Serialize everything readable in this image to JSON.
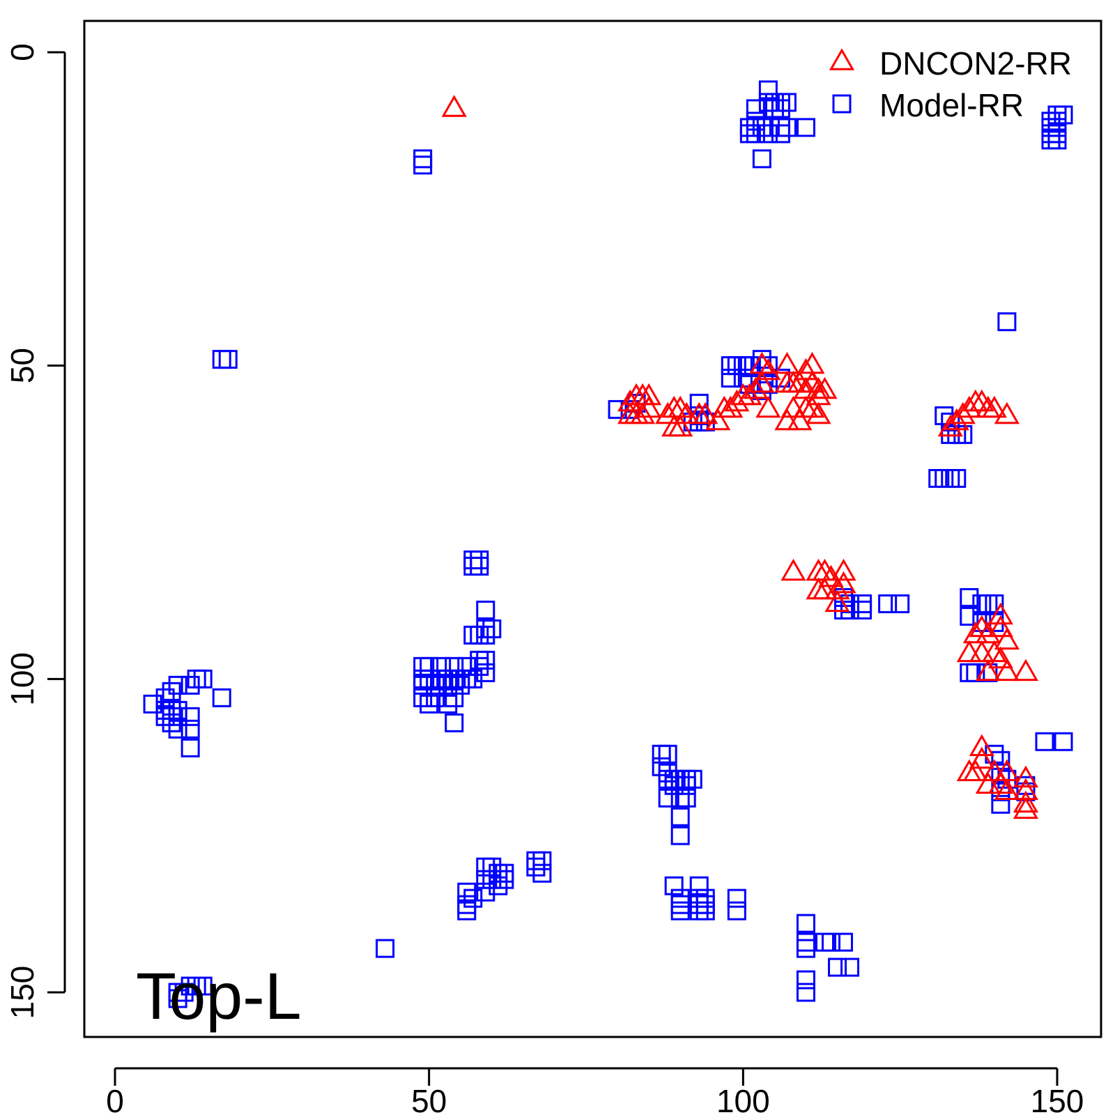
{
  "chart_data": {
    "type": "scatter",
    "title": "",
    "xlabel": "",
    "ylabel": "",
    "xlim": [
      -5,
      157
    ],
    "ylim": [
      -5,
      157
    ],
    "y_inverted": true,
    "x_ticks": [
      0,
      50,
      100,
      150
    ],
    "y_ticks": [
      0,
      50,
      100,
      150
    ],
    "x_tick_labels": [
      "0",
      "50",
      "100",
      "150"
    ],
    "y_tick_labels": [
      "0",
      "50",
      "100",
      "150"
    ],
    "annotation": "Top-L",
    "legend_position": "top-right",
    "grid": false,
    "series": [
      {
        "name": "DNCON2-RR",
        "marker": "triangle",
        "color": "#ff0000",
        "points": [
          [
            54,
            9
          ],
          [
            82,
            56
          ],
          [
            83,
            55
          ],
          [
            84,
            55
          ],
          [
            85,
            55
          ],
          [
            82,
            58
          ],
          [
            83,
            58
          ],
          [
            84,
            58
          ],
          [
            85,
            57
          ],
          [
            88,
            58
          ],
          [
            89,
            57
          ],
          [
            90,
            57
          ],
          [
            89,
            60
          ],
          [
            90,
            60
          ],
          [
            91,
            58
          ],
          [
            93,
            58
          ],
          [
            94,
            58
          ],
          [
            96,
            59
          ],
          [
            97,
            57
          ],
          [
            98,
            57
          ],
          [
            99,
            56
          ],
          [
            100,
            55
          ],
          [
            101,
            55
          ],
          [
            102,
            54
          ],
          [
            103,
            53
          ],
          [
            104,
            51
          ],
          [
            103,
            50
          ],
          [
            104,
            57
          ],
          [
            107,
            50
          ],
          [
            107,
            53
          ],
          [
            108,
            53
          ],
          [
            109,
            53
          ],
          [
            110,
            51
          ],
          [
            110,
            54
          ],
          [
            111,
            50
          ],
          [
            111,
            53
          ],
          [
            112,
            54
          ],
          [
            112,
            55
          ],
          [
            108,
            57
          ],
          [
            110,
            57
          ],
          [
            111,
            57
          ],
          [
            113,
            54
          ],
          [
            107,
            59
          ],
          [
            109,
            59
          ],
          [
            112,
            58
          ],
          [
            133,
            60
          ],
          [
            134,
            59
          ],
          [
            135,
            58
          ],
          [
            136,
            57
          ],
          [
            137,
            56
          ],
          [
            138,
            56
          ],
          [
            139,
            57
          ],
          [
            140,
            57
          ],
          [
            142,
            58
          ],
          [
            108,
            83
          ],
          [
            112,
            83
          ],
          [
            113,
            83
          ],
          [
            114,
            84
          ],
          [
            112,
            86
          ],
          [
            113,
            86
          ],
          [
            115,
            86
          ],
          [
            116,
            83
          ],
          [
            116,
            85
          ],
          [
            115,
            88
          ],
          [
            137,
            93
          ],
          [
            138,
            92
          ],
          [
            139,
            93
          ],
          [
            136,
            96
          ],
          [
            138,
            96
          ],
          [
            140,
            96
          ],
          [
            141,
            92
          ],
          [
            142,
            94
          ],
          [
            141,
            97
          ],
          [
            142,
            99
          ],
          [
            145,
            99
          ],
          [
            141,
            90
          ],
          [
            139,
            99
          ],
          [
            138,
            111
          ],
          [
            138,
            113
          ],
          [
            136,
            115
          ],
          [
            137,
            115
          ],
          [
            139,
            117
          ],
          [
            141,
            117
          ],
          [
            142,
            118
          ],
          [
            142,
            115
          ],
          [
            145,
            116
          ],
          [
            145,
            118
          ],
          [
            145,
            121
          ],
          [
            145,
            120
          ],
          [
            140,
            115
          ]
        ]
      },
      {
        "name": "Model-RR",
        "marker": "square",
        "color": "#0000ff",
        "points": [
          [
            104,
            6
          ],
          [
            104,
            8
          ],
          [
            105,
            8
          ],
          [
            106,
            8
          ],
          [
            107,
            8
          ],
          [
            105,
            9
          ],
          [
            106,
            9
          ],
          [
            102,
            9
          ],
          [
            102,
            11
          ],
          [
            101,
            12
          ],
          [
            101,
            13
          ],
          [
            102,
            13
          ],
          [
            103,
            12
          ],
          [
            104,
            13
          ],
          [
            106,
            12
          ],
          [
            106,
            13
          ],
          [
            107,
            12
          ],
          [
            110,
            12
          ],
          [
            103,
            17
          ],
          [
            49,
            17
          ],
          [
            49,
            18
          ],
          [
            150,
            10
          ],
          [
            151,
            10
          ],
          [
            149,
            11
          ],
          [
            150,
            11
          ],
          [
            149,
            12
          ],
          [
            150,
            12
          ],
          [
            149,
            13
          ],
          [
            150,
            13
          ],
          [
            149,
            14
          ],
          [
            150,
            14
          ],
          [
            142,
            43
          ],
          [
            17,
            49
          ],
          [
            18,
            49
          ],
          [
            80,
            57
          ],
          [
            82,
            57
          ],
          [
            83,
            56
          ],
          [
            92,
            59
          ],
          [
            93,
            56
          ],
          [
            93,
            58
          ],
          [
            93,
            59
          ],
          [
            94,
            59
          ],
          [
            98,
            50
          ],
          [
            99,
            50
          ],
          [
            100,
            50
          ],
          [
            101,
            50
          ],
          [
            98,
            52
          ],
          [
            100,
            52
          ],
          [
            101,
            53
          ],
          [
            103,
            49
          ],
          [
            104,
            50
          ],
          [
            106,
            52
          ],
          [
            104,
            53
          ],
          [
            103,
            54
          ],
          [
            132,
            58
          ],
          [
            133,
            59
          ],
          [
            134,
            61
          ],
          [
            135,
            61
          ],
          [
            133,
            61
          ],
          [
            131,
            68
          ],
          [
            132,
            68
          ],
          [
            133,
            68
          ],
          [
            134,
            68
          ],
          [
            57,
            81
          ],
          [
            58,
            81
          ],
          [
            58,
            82
          ],
          [
            57,
            82
          ],
          [
            59,
            89
          ],
          [
            59,
            92
          ],
          [
            60,
            92
          ],
          [
            59,
            93
          ],
          [
            58,
            93
          ],
          [
            57,
            93
          ],
          [
            49,
            98
          ],
          [
            50,
            98
          ],
          [
            52,
            98
          ],
          [
            54,
            98
          ],
          [
            56,
            98
          ],
          [
            58,
            98
          ],
          [
            49,
            100
          ],
          [
            50,
            100
          ],
          [
            52,
            100
          ],
          [
            53,
            100
          ],
          [
            54,
            100
          ],
          [
            55,
            100
          ],
          [
            56,
            100
          ],
          [
            57,
            100
          ],
          [
            49,
            101
          ],
          [
            51,
            101
          ],
          [
            53,
            101
          ],
          [
            55,
            101
          ],
          [
            49,
            103
          ],
          [
            51,
            103
          ],
          [
            54,
            103
          ],
          [
            50,
            104
          ],
          [
            53,
            104
          ],
          [
            54,
            107
          ],
          [
            58,
            97
          ],
          [
            59,
            97
          ],
          [
            59,
            99
          ],
          [
            6,
            104
          ],
          [
            8,
            103
          ],
          [
            9,
            102
          ],
          [
            10,
            101
          ],
          [
            12,
            101
          ],
          [
            13,
            100
          ],
          [
            14,
            100
          ],
          [
            8,
            105
          ],
          [
            9,
            105
          ],
          [
            10,
            105
          ],
          [
            8,
            106
          ],
          [
            10,
            106
          ],
          [
            9,
            107
          ],
          [
            10,
            108
          ],
          [
            12,
            106
          ],
          [
            12,
            108
          ],
          [
            12,
            111
          ],
          [
            17,
            103
          ],
          [
            116,
            87
          ],
          [
            117,
            88
          ],
          [
            116,
            89
          ],
          [
            117,
            89
          ],
          [
            119,
            88
          ],
          [
            119,
            89
          ],
          [
            123,
            88
          ],
          [
            125,
            88
          ],
          [
            136,
            87
          ],
          [
            136,
            90
          ],
          [
            138,
            88
          ],
          [
            139,
            88
          ],
          [
            140,
            88
          ],
          [
            138,
            91
          ],
          [
            140,
            91
          ],
          [
            137,
            99
          ],
          [
            136,
            99
          ],
          [
            139,
            99
          ],
          [
            140,
            112
          ],
          [
            141,
            113
          ],
          [
            141,
            115
          ],
          [
            142,
            116
          ],
          [
            141,
            118
          ],
          [
            141,
            120
          ],
          [
            145,
            117
          ],
          [
            145,
            118
          ],
          [
            148,
            110
          ],
          [
            151,
            110
          ],
          [
            87,
            112
          ],
          [
            88,
            112
          ],
          [
            87,
            114
          ],
          [
            88,
            115
          ],
          [
            88,
            116
          ],
          [
            89,
            116
          ],
          [
            90,
            116
          ],
          [
            91,
            116
          ],
          [
            92,
            116
          ],
          [
            89,
            117
          ],
          [
            91,
            117
          ],
          [
            88,
            119
          ],
          [
            90,
            119
          ],
          [
            91,
            119
          ],
          [
            90,
            122
          ],
          [
            90,
            125
          ],
          [
            56,
            134
          ],
          [
            57,
            135
          ],
          [
            59,
            130
          ],
          [
            60,
            130
          ],
          [
            61,
            131
          ],
          [
            62,
            131
          ],
          [
            59,
            132
          ],
          [
            60,
            132
          ],
          [
            62,
            132
          ],
          [
            59,
            134
          ],
          [
            61,
            133
          ],
          [
            67,
            129
          ],
          [
            68,
            129
          ],
          [
            67,
            130
          ],
          [
            68,
            131
          ],
          [
            56,
            136
          ],
          [
            56,
            137
          ],
          [
            89,
            133
          ],
          [
            90,
            135
          ],
          [
            90,
            136
          ],
          [
            90,
            137
          ],
          [
            93,
            133
          ],
          [
            93,
            135
          ],
          [
            94,
            135
          ],
          [
            93,
            136
          ],
          [
            94,
            136
          ],
          [
            93,
            137
          ],
          [
            94,
            137
          ],
          [
            99,
            135
          ],
          [
            99,
            137
          ],
          [
            110,
            139
          ],
          [
            110,
            142
          ],
          [
            110,
            143
          ],
          [
            113,
            142
          ],
          [
            114,
            142
          ],
          [
            116,
            142
          ],
          [
            115,
            146
          ],
          [
            117,
            146
          ],
          [
            43,
            143
          ],
          [
            110,
            148
          ],
          [
            110,
            150
          ],
          [
            10,
            150
          ],
          [
            11,
            150
          ],
          [
            12,
            149
          ],
          [
            13,
            149
          ],
          [
            14,
            149
          ],
          [
            10,
            151
          ]
        ]
      }
    ]
  }
}
